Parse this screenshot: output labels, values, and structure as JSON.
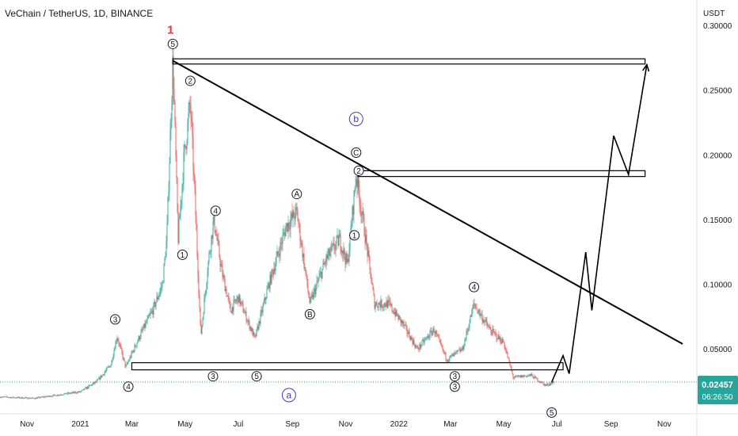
{
  "header": {
    "symbol_title": "VeChain / TetherUS, 1D, BINANCE"
  },
  "price_axis": {
    "currency": "USDT"
  },
  "price_badge": {
    "value": "0.02457",
    "countdown": "06:26:50",
    "color": "#26a69a"
  },
  "colors": {
    "up": "#26a69a",
    "down": "#ef5350",
    "wave_red": "#e53935",
    "wave_blue": "#3f3fb4",
    "drawing": "#000000"
  },
  "chart_data": {
    "type": "candlestick",
    "title": "VeChain / TetherUS, 1D, BINANCE",
    "x_tick_labels": [
      "Nov",
      "2021",
      "Mar",
      "May",
      "Jul",
      "Sep",
      "Nov",
      "2022",
      "Mar",
      "May",
      "Jul",
      "Sep",
      "Nov"
    ],
    "y_tick_labels": [
      "0.30000",
      "0.25000",
      "0.20000",
      "0.15000",
      "0.10000",
      "0.05000"
    ],
    "ylim": [
      0,
      0.32
    ],
    "ylabel": "USDT",
    "grid": false,
    "last_price": 0.02457,
    "price_path": [
      [
        "2020-10-01",
        0.013
      ],
      [
        "2020-11-10",
        0.012
      ],
      [
        "2020-12-10",
        0.015
      ],
      [
        "2021-01-01",
        0.017
      ],
      [
        "2021-01-20",
        0.025
      ],
      [
        "2021-02-05",
        0.038
      ],
      [
        "2021-02-12",
        0.06
      ],
      [
        "2021-02-22",
        0.036
      ],
      [
        "2021-03-10",
        0.06
      ],
      [
        "2021-03-25",
        0.08
      ],
      [
        "2021-04-05",
        0.1
      ],
      [
        "2021-04-10",
        0.135
      ],
      [
        "2021-04-17",
        0.275
      ],
      [
        "2021-04-23",
        0.135
      ],
      [
        "2021-04-30",
        0.2
      ],
      [
        "2021-05-07",
        0.24
      ],
      [
        "2021-05-12",
        0.17
      ],
      [
        "2021-05-19",
        0.06
      ],
      [
        "2021-05-28",
        0.12
      ],
      [
        "2021-06-03",
        0.15
      ],
      [
        "2021-06-12",
        0.11
      ],
      [
        "2021-06-22",
        0.08
      ],
      [
        "2021-07-01",
        0.09
      ],
      [
        "2021-07-20",
        0.058
      ],
      [
        "2021-08-05",
        0.1
      ],
      [
        "2021-08-25",
        0.145
      ],
      [
        "2021-09-06",
        0.156
      ],
      [
        "2021-09-21",
        0.085
      ],
      [
        "2021-10-10",
        0.12
      ],
      [
        "2021-10-25",
        0.135
      ],
      [
        "2021-11-03",
        0.115
      ],
      [
        "2021-11-13",
        0.185
      ],
      [
        "2021-11-25",
        0.13
      ],
      [
        "2021-12-04",
        0.085
      ],
      [
        "2021-12-20",
        0.085
      ],
      [
        "2022-01-05",
        0.07
      ],
      [
        "2022-01-22",
        0.05
      ],
      [
        "2022-02-10",
        0.065
      ],
      [
        "2022-02-25",
        0.042
      ],
      [
        "2022-03-15",
        0.05
      ],
      [
        "2022-03-28",
        0.085
      ],
      [
        "2022-04-15",
        0.065
      ],
      [
        "2022-05-01",
        0.055
      ],
      [
        "2022-05-12",
        0.028
      ],
      [
        "2022-06-01",
        0.03
      ],
      [
        "2022-06-18",
        0.022
      ],
      [
        "2022-06-28",
        0.0246
      ]
    ],
    "drawings": {
      "trendline": [
        [
          "2021-04-17",
          0.273
        ],
        [
          "2022-11-22",
          0.054
        ]
      ],
      "resistance_box_top": {
        "x": [
          "2021-04-17",
          "2022-10-10"
        ],
        "y": [
          0.2705,
          0.2745
        ]
      },
      "resistance_box_mid": {
        "x": [
          "2021-11-15",
          "2022-10-10"
        ],
        "y": [
          0.1835,
          0.188
        ]
      },
      "support_box": {
        "x": [
          "2021-03-01",
          "2022-07-08"
        ],
        "y": [
          0.034,
          0.0395
        ]
      },
      "projection": [
        [
          "2022-06-25",
          0.0245
        ],
        [
          "2022-07-08",
          0.045
        ],
        [
          "2022-07-15",
          0.031
        ],
        [
          "2022-08-03",
          0.125
        ],
        [
          "2022-08-10",
          0.08
        ],
        [
          "2022-09-04",
          0.215
        ],
        [
          "2022-09-21",
          0.185
        ],
        [
          "2022-10-12",
          0.27
        ]
      ],
      "markers": [
        {
          "label": "1",
          "date": "2021-04-17",
          "price": 0.297,
          "style": "red"
        },
        {
          "label": "5",
          "date": "2021-04-17",
          "price": 0.286,
          "style": "circle"
        },
        {
          "label": "2",
          "date": "2021-05-07",
          "price": 0.2575,
          "style": "circle"
        },
        {
          "label": "3",
          "date": "2021-02-10",
          "price": 0.073,
          "style": "circle"
        },
        {
          "label": "4",
          "date": "2021-02-25",
          "price": 0.021,
          "style": "circle"
        },
        {
          "label": "1",
          "date": "2021-04-28",
          "price": 0.123,
          "style": "circle"
        },
        {
          "label": "4",
          "date": "2021-06-05",
          "price": 0.157,
          "style": "circle"
        },
        {
          "label": "3",
          "date": "2021-06-02",
          "price": 0.029,
          "style": "circle"
        },
        {
          "label": "5",
          "date": "2021-07-22",
          "price": 0.029,
          "style": "circle"
        },
        {
          "label": "A",
          "date": "2021-09-06",
          "price": 0.17,
          "style": "circle"
        },
        {
          "label": "B",
          "date": "2021-09-21",
          "price": 0.077,
          "style": "circle"
        },
        {
          "label": "b",
          "date": "2021-11-13",
          "price": 0.228,
          "style": "blue"
        },
        {
          "label": "C",
          "date": "2021-11-13",
          "price": 0.202,
          "style": "circle"
        },
        {
          "label": "2",
          "date": "2021-11-16",
          "price": 0.188,
          "style": "circle"
        },
        {
          "label": "1",
          "date": "2021-11-11",
          "price": 0.138,
          "style": "circle"
        },
        {
          "label": "4",
          "date": "2022-03-28",
          "price": 0.098,
          "style": "circle"
        },
        {
          "label": "3",
          "date": "2022-03-06",
          "price": 0.029,
          "style": "circle"
        },
        {
          "label": "3",
          "date": "2022-03-06",
          "price": 0.021,
          "style": "circle"
        },
        {
          "label": "a",
          "date": "2021-08-28",
          "price": 0.0145,
          "style": "blue"
        },
        {
          "label": "5",
          "date": "2022-06-25",
          "price": 0.001,
          "style": "circle"
        }
      ]
    }
  }
}
